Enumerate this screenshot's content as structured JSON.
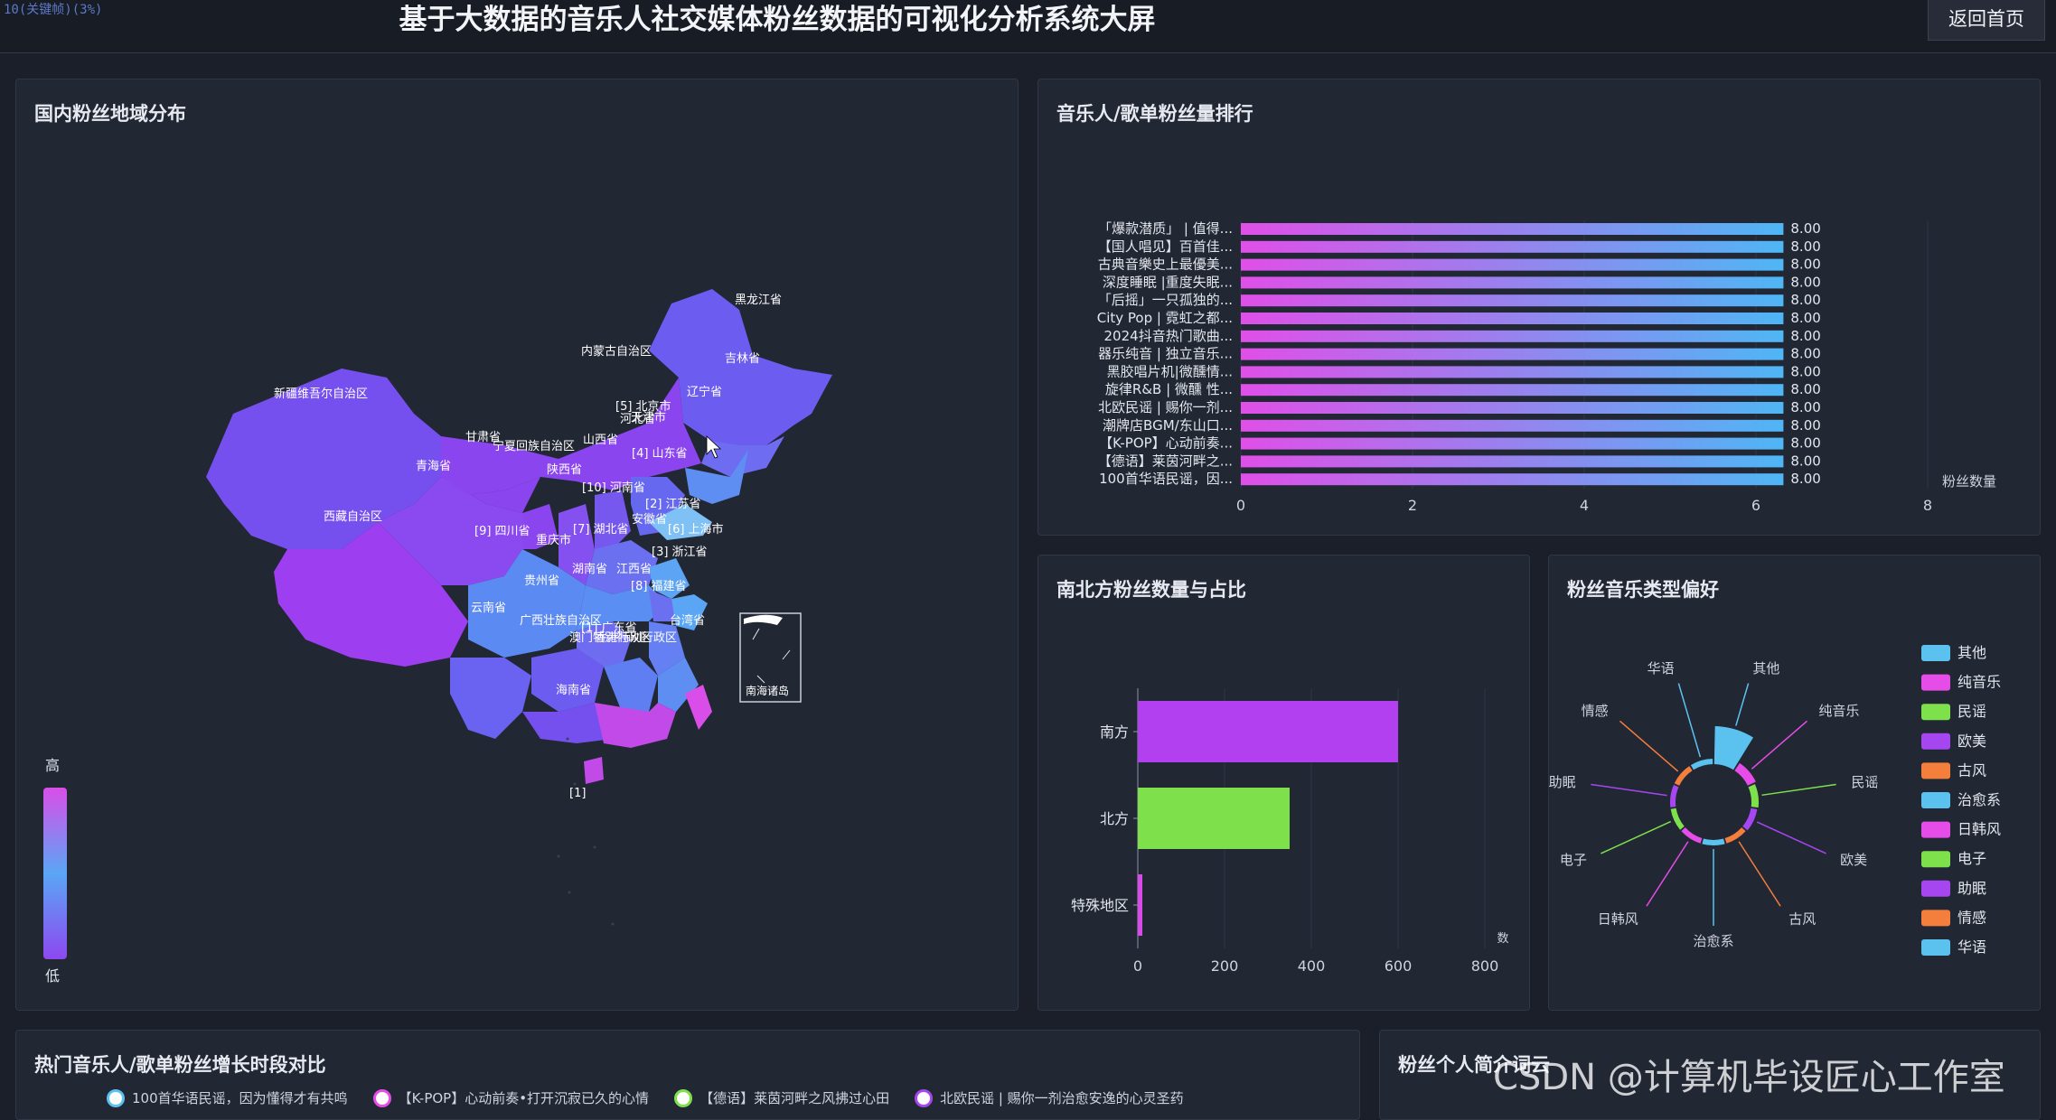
{
  "header": {
    "corner_text": "10(关键帧)(3%)",
    "title": "基于大数据的音乐人社交媒体粉丝数据的可视化分析系统大屏",
    "home_button": "返回首页"
  },
  "map_panel": {
    "title": "国内粉丝地域分布",
    "legend_high": "高",
    "legend_low": "低",
    "nanhai_label": "南海诸岛",
    "island_label": "[1]",
    "regions": [
      {
        "name": "黑龙江省"
      },
      {
        "name": "吉林省"
      },
      {
        "name": "辽宁省"
      },
      {
        "name": "内蒙古自治区"
      },
      {
        "name": "新疆维吾尔自治区"
      },
      {
        "name": "甘肃省"
      },
      {
        "name": "宁夏回族自治区"
      },
      {
        "name": "山西省"
      },
      {
        "name": "[5] 北京市"
      },
      {
        "name": "天津市"
      },
      {
        "name": "河北省"
      },
      {
        "name": "[4] 山东省"
      },
      {
        "name": "青海省"
      },
      {
        "name": "陕西省"
      },
      {
        "name": "[10] 河南省"
      },
      {
        "name": "[2] 江苏省"
      },
      {
        "name": "安徽省"
      },
      {
        "name": "[6] 上海市"
      },
      {
        "name": "西藏自治区"
      },
      {
        "name": "[9] 四川省"
      },
      {
        "name": "[7] 湖北省"
      },
      {
        "name": "重庆市"
      },
      {
        "name": "[3] 浙江省"
      },
      {
        "name": "湖南省"
      },
      {
        "name": "江西省"
      },
      {
        "name": "贵州省"
      },
      {
        "name": "[8] 福建省"
      },
      {
        "name": "云南省"
      },
      {
        "name": "广西壮族自治区"
      },
      {
        "name": "[1] 广东省"
      },
      {
        "name": "台湾省"
      },
      {
        "name": "澳门特别行政区"
      },
      {
        "name": "香港特别行政区"
      },
      {
        "name": "海南省"
      }
    ]
  },
  "rank_panel": {
    "title": "音乐人/歌单粉丝量排行",
    "chart_data": {
      "type": "bar",
      "orientation": "horizontal",
      "categories": [
        "「爆款潜质」 | 值得...",
        "【国人唱见】百首佳...",
        "古典音樂史上最優美...",
        "深度睡眠 |重度失眠...",
        "「后摇」一只孤独的...",
        "City Pop | 霓虹之都...",
        "2024抖音热门歌曲...",
        "器乐纯音 | 独立音乐...",
        "黑胶唱片机|微醺情...",
        "旋律R&B | 微醺 性...",
        "北欧民谣 | 赐你一剂...",
        "潮牌店BGM/东山口...",
        "【K-POP】心动前奏...",
        "【德语】莱茵河畔之...",
        "100首华语民谣，因..."
      ],
      "values": [
        8,
        8,
        8,
        8,
        8,
        8,
        8,
        8,
        8,
        8,
        8,
        8,
        8,
        8,
        8
      ],
      "value_labels": [
        "8.00",
        "8.00",
        "8.00",
        "8.00",
        "8.00",
        "8.00",
        "8.00",
        "8.00",
        "8.00",
        "8.00",
        "8.00",
        "8.00",
        "8.00",
        "8.00",
        "8.00"
      ],
      "xlabel": "粉丝数量",
      "xlim": [
        0,
        8
      ],
      "xticks": [
        "0",
        "2",
        "4",
        "6",
        "8"
      ],
      "grid": true,
      "colors": {
        "start": "#e04fe8",
        "end": "#4fb6f5"
      }
    }
  },
  "ns_panel": {
    "title": "南北方粉丝数量与占比",
    "chart_data": {
      "type": "bar",
      "orientation": "horizontal",
      "categories": [
        "南方",
        "北方",
        "特殊地区"
      ],
      "values": [
        600,
        350,
        8
      ],
      "xlim": [
        0,
        800
      ],
      "xticks": [
        "0",
        "200",
        "400",
        "600",
        "800"
      ],
      "unit_label": "数",
      "colors": [
        "#b23ff0",
        "#7ee14c",
        "#d84be8"
      ]
    }
  },
  "genre_panel": {
    "title": "粉丝音乐类型偏好",
    "chart_data": {
      "type": "pie",
      "variant": "rose",
      "categories": [
        "其他",
        "纯音乐",
        "民谣",
        "欧美",
        "古风",
        "治愈系",
        "日韩风",
        "电子",
        "助眠",
        "情感",
        "华语"
      ],
      "values": [
        38,
        6,
        4,
        3,
        2,
        2,
        2,
        2,
        2,
        2,
        2
      ],
      "colors": [
        "#5bc2f0",
        "#e64de8",
        "#7ee14c",
        "#a646f0",
        "#f47e3c",
        "#5bc2f0",
        "#e64de8",
        "#7ee14c",
        "#a646f0",
        "#f47e3c",
        "#5bc2f0"
      ],
      "legend_position": "right"
    }
  },
  "growth_panel": {
    "title": "热门音乐人/歌单粉丝增长时段对比",
    "legend": [
      {
        "label": "100首华语民谣，因为懂得才有共鸣",
        "color": "#5bc2f0"
      },
      {
        "label": "【K-POP】心动前奏•打开沉寂已久的心情",
        "color": "#e64de8"
      },
      {
        "label": "【德语】莱茵河畔之风拂过心田",
        "color": "#7ee14c"
      },
      {
        "label": "北欧民谣 | 赐你一剂治愈安逸的心灵圣药",
        "color": "#a646f0"
      }
    ]
  },
  "intro_panel": {
    "title": "粉丝个人简介词云"
  },
  "watermark": "CSDN @计算机毕设匠心工作室"
}
